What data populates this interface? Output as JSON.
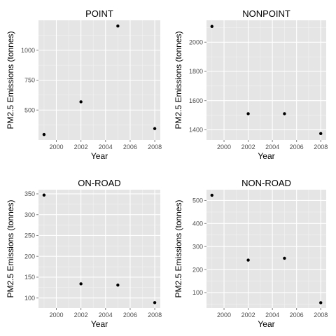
{
  "chart_data": [
    {
      "type": "scatter",
      "title": "POINT",
      "xlabel": "Year",
      "ylabel": "PM2.5 Emissions (tonnes)",
      "x": [
        1999,
        2002,
        2005,
        2008
      ],
      "y": [
        296,
        569,
        1202,
        345
      ],
      "xlim": [
        1998.55,
        2008.45
      ],
      "ylim": [
        250,
        1250
      ],
      "xticks": [
        2000,
        2002,
        2004,
        2006,
        2008
      ],
      "yticks": [
        500,
        750,
        1000
      ],
      "grid": true
    },
    {
      "type": "scatter",
      "title": "NONPOINT",
      "xlabel": "Year",
      "ylabel": "PM2.5 Emissions (tonnes)",
      "x": [
        1999,
        2002,
        2005,
        2008
      ],
      "y": [
        2108,
        1510,
        1510,
        1374
      ],
      "xlim": [
        1998.55,
        2008.45
      ],
      "ylim": [
        1330,
        2150
      ],
      "xticks": [
        2000,
        2002,
        2004,
        2006,
        2008
      ],
      "yticks": [
        1400,
        1600,
        1800,
        2000
      ],
      "grid": true
    },
    {
      "type": "scatter",
      "title": "ON-ROAD",
      "xlabel": "Year",
      "ylabel": "PM2.5 Emissions (tonnes)",
      "x": [
        1999,
        2002,
        2005,
        2008
      ],
      "y": [
        347,
        134,
        131,
        89
      ],
      "xlim": [
        1998.55,
        2008.45
      ],
      "ylim": [
        76,
        360
      ],
      "xticks": [
        2000,
        2002,
        2004,
        2006,
        2008
      ],
      "yticks": [
        100,
        150,
        200,
        250,
        300,
        350
      ],
      "grid": true
    },
    {
      "type": "scatter",
      "title": "NON-ROAD",
      "xlabel": "Year",
      "ylabel": "PM2.5 Emissions (tonnes)",
      "x": [
        1999,
        2002,
        2005,
        2008
      ],
      "y": [
        523,
        241,
        249,
        56
      ],
      "xlim": [
        1998.55,
        2008.45
      ],
      "ylim": [
        33,
        547
      ],
      "xticks": [
        2000,
        2002,
        2004,
        2006,
        2008
      ],
      "yticks": [
        100,
        200,
        300,
        400,
        500
      ],
      "grid": true
    }
  ],
  "colors": {
    "panel_background": "#e5e5e5",
    "grid_major": "#ffffff",
    "grid_minor": "#f2f2f2",
    "point": "#000000",
    "tick_label": "#4d4d4d"
  }
}
